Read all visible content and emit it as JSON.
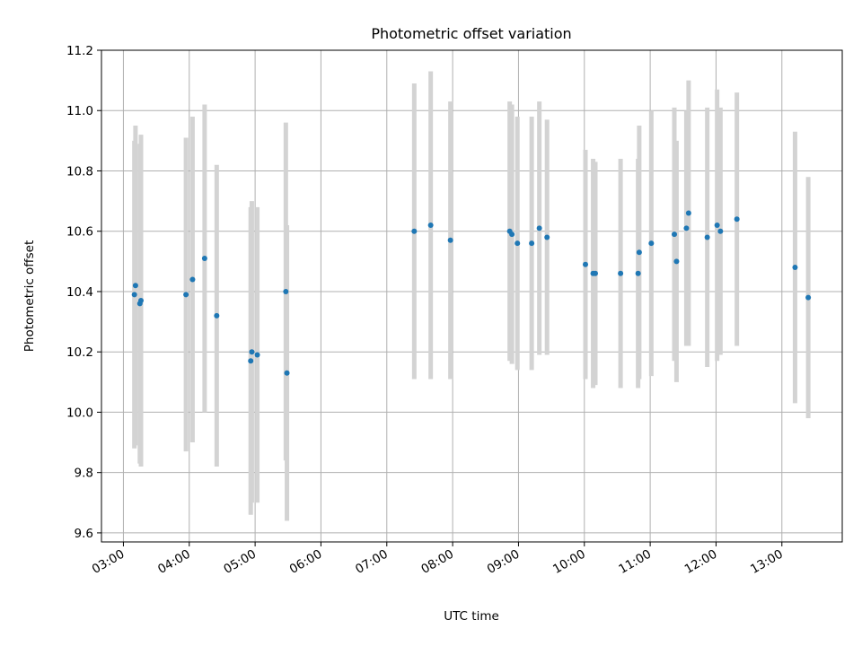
{
  "chart_data": {
    "type": "scatter",
    "title": "Photometric offset variation",
    "xlabel": "UTC time",
    "ylabel": "Photometric offset",
    "xlim": [
      "02:40",
      "13:55"
    ],
    "ylim": [
      9.57,
      11.2
    ],
    "x_ticks": [
      "03:00",
      "04:00",
      "05:00",
      "06:00",
      "07:00",
      "08:00",
      "09:00",
      "10:00",
      "11:00",
      "12:00",
      "13:00"
    ],
    "y_ticks": [
      "9.6",
      "9.8",
      "10.0",
      "10.2",
      "10.4",
      "10.6",
      "10.8",
      "11.0",
      "11.2"
    ],
    "grid": true,
    "colors": {
      "point": "#1f77b4",
      "errorbar": "#d3d3d3",
      "grid": "#b0b0b0"
    },
    "series": [
      {
        "points": [
          {
            "x": "03:10",
            "y": 10.39,
            "err": 0.51
          },
          {
            "x": "03:11",
            "y": 10.42,
            "err": 0.53
          },
          {
            "x": "03:15",
            "y": 10.36,
            "err": 0.53
          },
          {
            "x": "03:16",
            "y": 10.37,
            "err": 0.55
          },
          {
            "x": "03:57",
            "y": 10.39,
            "err": 0.52
          },
          {
            "x": "04:03",
            "y": 10.44,
            "err": 0.54
          },
          {
            "x": "04:14",
            "y": 10.51,
            "err": 0.51
          },
          {
            "x": "04:25",
            "y": 10.32,
            "err": 0.5
          },
          {
            "x": "04:56",
            "y": 10.17,
            "err": 0.51
          },
          {
            "x": "04:57",
            "y": 10.2,
            "err": 0.5
          },
          {
            "x": "05:02",
            "y": 10.19,
            "err": 0.49
          },
          {
            "x": "05:28",
            "y": 10.4,
            "err": 0.56
          },
          {
            "x": "05:29",
            "y": 10.13,
            "err": 0.49
          },
          {
            "x": "07:25",
            "y": 10.6,
            "err": 0.49
          },
          {
            "x": "07:40",
            "y": 10.62,
            "err": 0.51
          },
          {
            "x": "07:58",
            "y": 10.57,
            "err": 0.46
          },
          {
            "x": "08:52",
            "y": 10.6,
            "err": 0.43
          },
          {
            "x": "08:54",
            "y": 10.59,
            "err": 0.43
          },
          {
            "x": "08:59",
            "y": 10.56,
            "err": 0.42
          },
          {
            "x": "09:12",
            "y": 10.56,
            "err": 0.42
          },
          {
            "x": "09:19",
            "y": 10.61,
            "err": 0.42
          },
          {
            "x": "09:26",
            "y": 10.58,
            "err": 0.39
          },
          {
            "x": "10:01",
            "y": 10.49,
            "err": 0.38
          },
          {
            "x": "10:08",
            "y": 10.46,
            "err": 0.38
          },
          {
            "x": "10:10",
            "y": 10.46,
            "err": 0.37
          },
          {
            "x": "10:33",
            "y": 10.46,
            "err": 0.38
          },
          {
            "x": "10:49",
            "y": 10.46,
            "err": 0.38
          },
          {
            "x": "10:50",
            "y": 10.53,
            "err": 0.42
          },
          {
            "x": "11:01",
            "y": 10.56,
            "err": 0.44
          },
          {
            "x": "11:22",
            "y": 10.59,
            "err": 0.42
          },
          {
            "x": "11:24",
            "y": 10.5,
            "err": 0.4
          },
          {
            "x": "11:33",
            "y": 10.61,
            "err": 0.39
          },
          {
            "x": "11:35",
            "y": 10.66,
            "err": 0.44
          },
          {
            "x": "11:52",
            "y": 10.58,
            "err": 0.43
          },
          {
            "x": "12:01",
            "y": 10.62,
            "err": 0.45
          },
          {
            "x": "12:04",
            "y": 10.6,
            "err": 0.41
          },
          {
            "x": "12:19",
            "y": 10.64,
            "err": 0.42
          },
          {
            "x": "13:12",
            "y": 10.48,
            "err": 0.45
          },
          {
            "x": "13:24",
            "y": 10.38,
            "err": 0.4
          }
        ]
      }
    ]
  }
}
